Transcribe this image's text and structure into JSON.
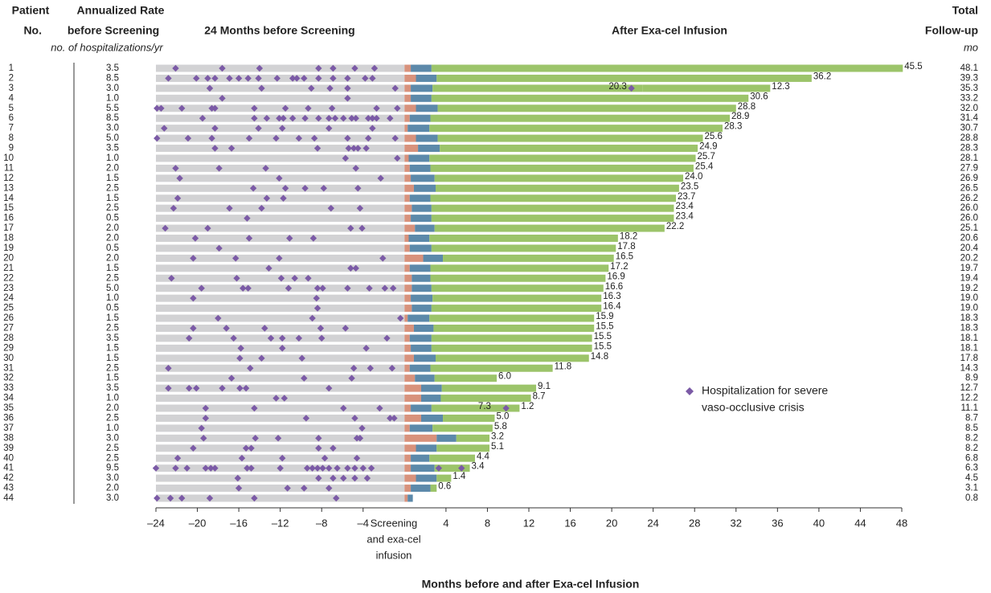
{
  "chart_data": {
    "type": "swimmer",
    "headers": {
      "patient": "Patient",
      "no": "No.",
      "rate_1": "Annualized Rate",
      "rate_2": "before Screening",
      "rate_unit": "no. of hospitalizations/yr",
      "before": "24 Months before Screening",
      "after": "After Exa-cel Infusion",
      "total_1": "Total",
      "total_2": "Follow-up",
      "total_unit": "mo"
    },
    "x_label": "Months before and after Exa-cel Infusion",
    "x_center_label": [
      "Screening",
      "and exa-cel",
      "infusion"
    ],
    "legend": [
      "Hospitalization for severe",
      "vaso-occlusive crisis"
    ],
    "colors": {
      "window": "#d2d2d4",
      "screening": "#d8927c",
      "infusion": "#5c89aa",
      "free": "#9cc46a",
      "event": "#7b5aa6"
    },
    "xlim": [
      -24,
      48
    ],
    "xticks": [
      {
        "value": -24,
        "label": "–24"
      },
      {
        "value": -20,
        "label": "–20"
      },
      {
        "value": -16,
        "label": "–16"
      },
      {
        "value": -12,
        "label": "–12"
      },
      {
        "value": -8,
        "label": "–8"
      },
      {
        "value": -4,
        "label": "–4"
      },
      4,
      8,
      12,
      16,
      20,
      24,
      28,
      32,
      36,
      40,
      44,
      48
    ],
    "rows": [
      {
        "no": 1,
        "rate": 3.5,
        "rate_label": "3.5",
        "events": [
          -22.1,
          -17.6,
          -14.0,
          -8.3,
          -6.9,
          -4.8,
          -2.9
        ],
        "screening": 0.6,
        "vof": [
          45.5
        ],
        "vof_labels": [
          "45.5"
        ],
        "followup": 48.1,
        "followup_label": "48.1"
      },
      {
        "no": 2,
        "rate": 8.5,
        "rate_label": "8.5",
        "events": [
          -22.8,
          -20.1,
          -19.0,
          -18.3,
          -16.9,
          -16.0,
          -15.1,
          -14.1,
          -12.3,
          -10.8,
          -10.4,
          -9.7,
          -8.3,
          -6.9,
          -5.5,
          -3.8,
          -3.1
        ],
        "screening": 1.1,
        "vof": [
          36.2
        ],
        "vof_labels": [
          "36.2"
        ],
        "followup": 39.3,
        "followup_label": "39.3"
      },
      {
        "no": 3,
        "rate": 3.0,
        "rate_label": "3.0",
        "events": [
          -18.8,
          -13.8,
          -9.0,
          -7.2,
          -5.5,
          -0.9
        ],
        "post_events": [
          21.9
        ],
        "screening": 0.6,
        "vof": [
          20.3,
          12.3
        ],
        "vof_labels": [
          "20.3",
          "12.3"
        ],
        "followup": 35.3,
        "followup_label": "35.3"
      },
      {
        "no": 4,
        "rate": 1.0,
        "rate_label": "1.0",
        "events": [
          -17.6,
          -5.5
        ],
        "screening": 0.6,
        "vof": [
          30.6
        ],
        "vof_labels": [
          "30.6"
        ],
        "followup": 33.2,
        "followup_label": "33.2"
      },
      {
        "no": 5,
        "rate": 5.5,
        "rate_label": "5.5",
        "events": [
          -23.9,
          -23.5,
          -21.5,
          -18.6,
          -18.3,
          -14.5,
          -11.5,
          -9.3,
          -7.0,
          -2.7,
          -0.7
        ],
        "screening": 1.1,
        "vof": [
          28.8
        ],
        "vof_labels": [
          "28.8"
        ],
        "followup": 32.0,
        "followup_label": "32.0"
      },
      {
        "no": 6,
        "rate": 8.5,
        "rate_label": "8.5",
        "events": [
          -19.5,
          -14.5,
          -13.3,
          -12.1,
          -11.7,
          -10.8,
          -9.6,
          -8.3,
          -7.3,
          -6.7,
          -5.9,
          -5.1,
          -4.7,
          -3.5,
          -3.1,
          -2.7,
          -1.4
        ],
        "screening": 0.5,
        "vof": [
          28.9
        ],
        "vof_labels": [
          "28.9"
        ],
        "followup": 31.4,
        "followup_label": "31.4"
      },
      {
        "no": 7,
        "rate": 3.0,
        "rate_label": "3.0",
        "events": [
          -23.2,
          -18.3,
          -14.1,
          -11.8,
          -7.3,
          -3.1
        ],
        "screening": 0.3,
        "vof": [
          28.3
        ],
        "vof_labels": [
          "28.3"
        ],
        "followup": 30.7,
        "followup_label": "30.7"
      },
      {
        "no": 8,
        "rate": 5.0,
        "rate_label": "5.0",
        "events": [
          -23.9,
          -20.9,
          -18.6,
          -15.0,
          -12.4,
          -10.2,
          -8.7,
          -5.5,
          -3.5,
          -0.9
        ],
        "screening": 1.1,
        "vof": [
          25.6
        ],
        "vof_labels": [
          "25.6"
        ],
        "followup": 28.8,
        "followup_label": "28.8"
      },
      {
        "no": 9,
        "rate": 3.5,
        "rate_label": "3.5",
        "events": [
          -18.3,
          -16.7,
          -8.4,
          -5.4,
          -4.9,
          -4.5,
          -3.7
        ],
        "screening": 1.3,
        "vof": [
          24.9
        ],
        "vof_labels": [
          "24.9"
        ],
        "followup": 28.3,
        "followup_label": "28.3"
      },
      {
        "no": 10,
        "rate": 1.0,
        "rate_label": "1.0",
        "events": [
          -5.7,
          -0.7
        ],
        "screening": 0.4,
        "vof": [
          25.7
        ],
        "vof_labels": [
          "25.7"
        ],
        "followup": 28.1,
        "followup_label": "28.1"
      },
      {
        "no": 11,
        "rate": 2.0,
        "rate_label": "2.0",
        "events": [
          -22.1,
          -17.9,
          -13.4,
          -4.7
        ],
        "screening": 0.5,
        "vof": [
          25.4
        ],
        "vof_labels": [
          "25.4"
        ],
        "followup": 27.9,
        "followup_label": "27.9"
      },
      {
        "no": 12,
        "rate": 1.5,
        "rate_label": "1.5",
        "events": [
          -21.7,
          -12.1,
          -2.3
        ],
        "screening": 0.6,
        "vof": [
          24.0
        ],
        "vof_labels": [
          "24.0"
        ],
        "followup": 26.9,
        "followup_label": "26.9"
      },
      {
        "no": 13,
        "rate": 2.5,
        "rate_label": "2.5",
        "events": [
          -14.6,
          -11.5,
          -9.6,
          -7.8,
          -4.5
        ],
        "screening": 0.9,
        "vof": [
          23.5
        ],
        "vof_labels": [
          "23.5"
        ],
        "followup": 26.5,
        "followup_label": "26.5"
      },
      {
        "no": 14,
        "rate": 1.5,
        "rate_label": "1.5",
        "events": [
          -21.9,
          -13.3,
          -11.7
        ],
        "screening": 0.5,
        "vof": [
          23.7
        ],
        "vof_labels": [
          "23.7"
        ],
        "followup": 26.2,
        "followup_label": "26.2"
      },
      {
        "no": 15,
        "rate": 2.5,
        "rate_label": "2.5",
        "events": [
          -22.3,
          -16.9,
          -13.8,
          -7.1,
          -4.3
        ],
        "screening": 0.7,
        "vof": [
          23.4
        ],
        "vof_labels": [
          "23.4"
        ],
        "followup": 26.0,
        "followup_label": "26.0"
      },
      {
        "no": 16,
        "rate": 0.5,
        "rate_label": "0.5",
        "events": [
          -15.2
        ],
        "screening": 0.6,
        "vof": [
          23.4
        ],
        "vof_labels": [
          "23.4"
        ],
        "followup": 26.0,
        "followup_label": "26.0"
      },
      {
        "no": 17,
        "rate": 2.0,
        "rate_label": "2.0",
        "events": [
          -23.1,
          -19.0,
          -5.2,
          -4.1
        ],
        "screening": 1.0,
        "vof": [
          22.2
        ],
        "vof_labels": [
          "22.2"
        ],
        "followup": 25.1,
        "followup_label": "25.1"
      },
      {
        "no": 18,
        "rate": 2.0,
        "rate_label": "2.0",
        "events": [
          -20.2,
          -15.0,
          -11.1,
          -8.8
        ],
        "screening": 0.4,
        "vof": [
          18.2
        ],
        "vof_labels": [
          "18.2"
        ],
        "followup": 20.6,
        "followup_label": "20.6"
      },
      {
        "no": 19,
        "rate": 0.5,
        "rate_label": "0.5",
        "events": [
          -17.9
        ],
        "screening": 0.5,
        "vof": [
          17.8
        ],
        "vof_labels": [
          "17.8"
        ],
        "followup": 20.4,
        "followup_label": "20.4"
      },
      {
        "no": 20,
        "rate": 2.0,
        "rate_label": "2.0",
        "events": [
          -20.4,
          -16.3,
          -12.1,
          -2.1
        ],
        "screening": 1.8,
        "vof": [
          16.5
        ],
        "vof_labels": [
          "16.5"
        ],
        "followup": 20.2,
        "followup_label": "20.2"
      },
      {
        "no": 21,
        "rate": 1.5,
        "rate_label": "1.5",
        "events": [
          -13.1,
          -5.2,
          -4.7
        ],
        "screening": 0.5,
        "vof": [
          17.2
        ],
        "vof_labels": [
          "17.2"
        ],
        "followup": 19.7,
        "followup_label": "19.7"
      },
      {
        "no": 22,
        "rate": 2.5,
        "rate_label": "2.5",
        "events": [
          -22.5,
          -16.2,
          -11.9,
          -10.6,
          -9.3
        ],
        "screening": 0.7,
        "vof": [
          16.9
        ],
        "vof_labels": [
          "16.9"
        ],
        "followup": 19.4,
        "followup_label": "19.4"
      },
      {
        "no": 23,
        "rate": 5.0,
        "rate_label": "5.0",
        "events": [
          -19.6,
          -15.6,
          -15.1,
          -11.2,
          -8.4,
          -7.9,
          -5.5,
          -3.4,
          -1.9,
          -1.1
        ],
        "screening": 0.7,
        "vof": [
          16.6
        ],
        "vof_labels": [
          "16.6"
        ],
        "followup": 19.2,
        "followup_label": "19.2"
      },
      {
        "no": 24,
        "rate": 1.0,
        "rate_label": "1.0",
        "events": [
          -20.4,
          -8.5
        ],
        "screening": 0.6,
        "vof": [
          16.3
        ],
        "vof_labels": [
          "16.3"
        ],
        "followup": 19.0,
        "followup_label": "19.0"
      },
      {
        "no": 25,
        "rate": 0.5,
        "rate_label": "0.5",
        "events": [
          -8.4
        ],
        "screening": 0.7,
        "vof": [
          16.4
        ],
        "vof_labels": [
          "16.4"
        ],
        "followup": 19.0,
        "followup_label": "19.0"
      },
      {
        "no": 26,
        "rate": 1.5,
        "rate_label": "1.5",
        "events": [
          -18.0,
          -8.9,
          -0.4
        ],
        "screening": 0.3,
        "vof": [
          15.9
        ],
        "vof_labels": [
          "15.9"
        ],
        "followup": 18.3,
        "followup_label": "18.3"
      },
      {
        "no": 27,
        "rate": 2.5,
        "rate_label": "2.5",
        "events": [
          -20.4,
          -17.2,
          -13.5,
          -8.1,
          -5.7
        ],
        "screening": 0.9,
        "vof": [
          15.5
        ],
        "vof_labels": [
          "15.5"
        ],
        "followup": 18.3,
        "followup_label": "18.3"
      },
      {
        "no": 28,
        "rate": 3.5,
        "rate_label": "3.5",
        "events": [
          -20.8,
          -16.5,
          -12.9,
          -11.8,
          -10.2,
          -8.0,
          -1.7
        ],
        "screening": 0.5,
        "vof": [
          15.5
        ],
        "vof_labels": [
          "15.5"
        ],
        "followup": 18.1,
        "followup_label": "18.1"
      },
      {
        "no": 29,
        "rate": 1.5,
        "rate_label": "1.5",
        "events": [
          -15.8,
          -11.8,
          -3.7
        ],
        "screening": 0.6,
        "vof": [
          15.5
        ],
        "vof_labels": [
          "15.5"
        ],
        "followup": 18.1,
        "followup_label": "18.1"
      },
      {
        "no": 30,
        "rate": 1.5,
        "rate_label": "1.5",
        "events": [
          -15.9,
          -13.8,
          -9.9
        ],
        "screening": 0.9,
        "vof": [
          14.8
        ],
        "vof_labels": [
          "14.8"
        ],
        "followup": 17.8,
        "followup_label": "17.8"
      },
      {
        "no": 31,
        "rate": 2.5,
        "rate_label": "2.5",
        "events": [
          -22.8,
          -14.9,
          -4.9,
          -3.3,
          -1.2
        ],
        "screening": 0.5,
        "vof": [
          11.8
        ],
        "vof_labels": [
          "11.8"
        ],
        "followup": 14.3,
        "followup_label": "14.3"
      },
      {
        "no": 32,
        "rate": 1.5,
        "rate_label": "1.5",
        "events": [
          -16.7,
          -9.7,
          -5.1
        ],
        "screening": 1.0,
        "vof": [
          6.0
        ],
        "vof_labels": [
          "6.0"
        ],
        "followup": 8.9,
        "followup_label": "8.9"
      },
      {
        "no": 33,
        "rate": 3.5,
        "rate_label": "3.5",
        "events": [
          -22.8,
          -20.8,
          -20.1,
          -17.6,
          -15.9,
          -15.3,
          -7.3
        ],
        "screening": 1.6,
        "vof": [
          9.1
        ],
        "vof_labels": [
          "9.1"
        ],
        "followup": 12.7,
        "followup_label": "12.7"
      },
      {
        "no": 34,
        "rate": 1.0,
        "rate_label": "1.0",
        "events": [
          -12.4,
          -11.6
        ],
        "screening": 1.6,
        "vof": [
          8.7
        ],
        "vof_labels": [
          "8.7"
        ],
        "followup": 12.2,
        "followup_label": "12.2"
      },
      {
        "no": 35,
        "rate": 2.0,
        "rate_label": "2.0",
        "events": [
          -19.2,
          -14.5,
          -5.9,
          -2.4
        ],
        "post_events": [
          9.8
        ],
        "screening": 0.6,
        "vof": [
          7.3,
          1.2
        ],
        "vof_labels": [
          "7.3",
          "1.2"
        ],
        "followup": 11.1,
        "followup_label": "11.1"
      },
      {
        "no": 36,
        "rate": 2.5,
        "rate_label": "2.5",
        "events": [
          -19.2,
          -9.5,
          -4.8,
          -1.4,
          -1.0
        ],
        "screening": 1.6,
        "vof": [
          5.0
        ],
        "vof_labels": [
          "5.0"
        ],
        "followup": 8.7,
        "followup_label": "8.7"
      },
      {
        "no": 37,
        "rate": 1.0,
        "rate_label": "1.0",
        "events": [
          -19.6,
          -4.1
        ],
        "screening": 0.5,
        "vof": [
          5.8
        ],
        "vof_labels": [
          "5.8"
        ],
        "followup": 8.5,
        "followup_label": "8.5"
      },
      {
        "no": 38,
        "rate": 3.0,
        "rate_label": "3.0",
        "events": [
          -19.4,
          -14.4,
          -12.2,
          -8.3,
          -4.6,
          -4.3
        ],
        "screening": 3.1,
        "vof": [
          3.2
        ],
        "vof_labels": [
          "3.2"
        ],
        "followup": 8.2,
        "followup_label": "8.2"
      },
      {
        "no": 39,
        "rate": 2.5,
        "rate_label": "2.5",
        "events": [
          -20.4,
          -15.3,
          -14.8,
          -8.3,
          -6.9
        ],
        "screening": 1.1,
        "vof": [
          5.1
        ],
        "vof_labels": [
          "5.1"
        ],
        "followup": 8.2,
        "followup_label": "8.2"
      },
      {
        "no": 40,
        "rate": 2.5,
        "rate_label": "2.5",
        "events": [
          -21.9,
          -15.7,
          -11.8,
          -7.7,
          -4.6
        ],
        "screening": 0.6,
        "vof": [
          4.4
        ],
        "vof_labels": [
          "4.4"
        ],
        "followup": 6.8,
        "followup_label": "6.8"
      },
      {
        "no": 41,
        "rate": 9.5,
        "rate_label": "9.5",
        "events": [
          -24.0,
          -22.1,
          -21.0,
          -19.2,
          -18.7,
          -18.3,
          -15.2,
          -14.8,
          -12.0,
          -9.4,
          -8.9,
          -8.4,
          -7.9,
          -7.3,
          -6.5,
          -5.5,
          -4.8,
          -4.0,
          -3.2
        ],
        "post_events": [
          3.3,
          5.5
        ],
        "screening": 0.6,
        "vof": [
          3.4
        ],
        "vof_labels": [
          "3.4"
        ],
        "followup": 6.3,
        "followup_label": "6.3"
      },
      {
        "no": 42,
        "rate": 3.0,
        "rate_label": "3.0",
        "events": [
          -16.1,
          -8.3,
          -6.9,
          -5.9,
          -4.8,
          -3.6
        ],
        "screening": 1.1,
        "vof": [
          1.4
        ],
        "vof_labels": [
          "1.4"
        ],
        "followup": 4.5,
        "followup_label": "4.5"
      },
      {
        "no": 43,
        "rate": 2.0,
        "rate_label": "2.0",
        "events": [
          -16.0,
          -11.3,
          -9.7,
          -7.3
        ],
        "screening": 0.6,
        "vof": [
          0.6
        ],
        "vof_labels": [
          "0.6"
        ],
        "followup": 3.1,
        "followup_label": "3.1"
      },
      {
        "no": 44,
        "rate": 3.0,
        "rate_label": "3.0",
        "events": [
          -23.9,
          -22.6,
          -21.5,
          -18.8,
          -14.5,
          -6.6
        ],
        "screening": 0.3,
        "vof": [],
        "vof_labels": [],
        "followup": 0.8,
        "followup_label": "0.8"
      }
    ]
  }
}
